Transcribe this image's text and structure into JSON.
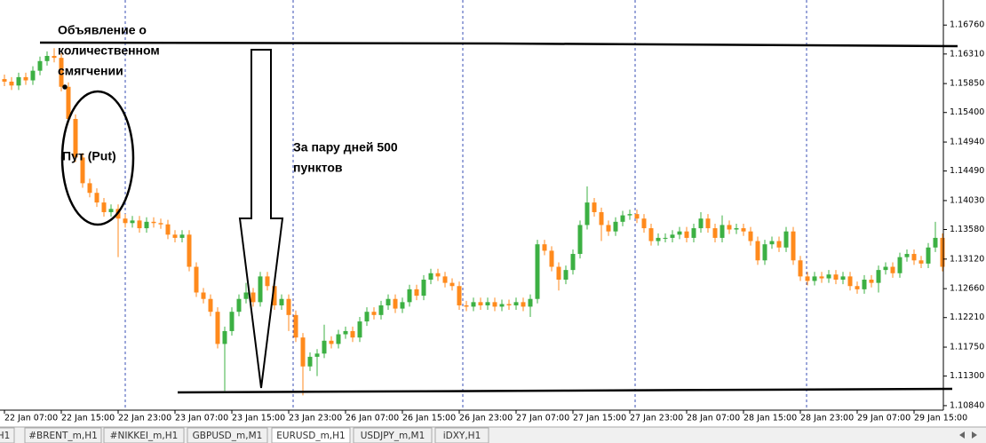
{
  "chart_data": {
    "type": "candlestick",
    "categories": [
      "22 Jan 07:00",
      null,
      null,
      null,
      null,
      null,
      null,
      null,
      "22 Jan 15:00",
      null,
      null,
      null,
      null,
      null,
      null,
      null,
      "22 Jan 23:00",
      null,
      null,
      null,
      null,
      null,
      null,
      null,
      "23 Jan 07:00",
      null,
      null,
      null,
      null,
      null,
      null,
      null,
      "23 Jan 15:00",
      null,
      null,
      null,
      null,
      null,
      null,
      null,
      "23 Jan 23:00",
      null,
      null,
      null,
      null,
      null,
      null,
      null,
      "26 Jan 07:00",
      null,
      null,
      null,
      null,
      null,
      null,
      null,
      "26 Jan 15:00",
      null,
      null,
      null,
      null,
      null,
      null,
      null,
      "26 Jan 23:00",
      null,
      null,
      null,
      null,
      null,
      null,
      null,
      "27 Jan 07:00",
      null,
      null,
      null,
      null,
      null,
      null,
      null,
      "27 Jan 15:00",
      null,
      null,
      null,
      null,
      null,
      null,
      null,
      "27 Jan 23:00",
      null,
      null,
      null,
      null,
      null,
      null,
      null,
      "28 Jan 07:00",
      null,
      null,
      null,
      null,
      null,
      null,
      null,
      "28 Jan 15:00",
      null,
      null,
      null,
      null,
      null,
      null,
      null,
      "28 Jan 23:00",
      null,
      null,
      null,
      null,
      null,
      null,
      null,
      "29 Jan 07:00",
      null,
      null,
      null,
      null,
      null,
      null,
      null,
      "29 Jan 15:00",
      null,
      null,
      null,
      null
    ],
    "open": [
      1.1592,
      1.1588,
      1.1582,
      1.1595,
      1.159,
      1.1605,
      1.162,
      1.1628,
      1.1625,
      1.158,
      1.153,
      1.147,
      1.143,
      1.1415,
      1.14,
      1.1385,
      1.139,
      1.1375,
      1.1368,
      1.1372,
      1.136,
      1.137,
      1.1368,
      1.1366,
      1.135,
      1.1345,
      1.135,
      1.13,
      1.126,
      1.125,
      1.123,
      1.118,
      1.12,
      1.123,
      1.125,
      1.126,
      1.1245,
      1.1285,
      1.127,
      1.124,
      1.125,
      1.1225,
      1.119,
      1.1145,
      1.116,
      1.1165,
      1.1185,
      1.118,
      1.1195,
      1.12,
      1.119,
      1.1215,
      1.123,
      1.1225,
      1.124,
      1.125,
      1.1235,
      1.1245,
      1.1265,
      1.1255,
      1.128,
      1.129,
      1.1285,
      1.1275,
      1.127,
      1.124,
      1.1238,
      1.1245,
      1.124,
      1.1245,
      1.1238,
      1.1242,
      1.124,
      1.1245,
      1.1238,
      1.125,
      1.1335,
      1.1325,
      1.13,
      1.128,
      1.1295,
      1.132,
      1.1365,
      1.14,
      1.1385,
      1.1365,
      1.1355,
      1.137,
      1.138,
      1.1382,
      1.1375,
      1.136,
      1.134,
      1.1345,
      1.1345,
      1.135,
      1.1355,
      1.1345,
      1.136,
      1.1375,
      1.136,
      1.1345,
      1.1365,
      1.1358,
      1.136,
      1.1355,
      1.134,
      1.131,
      1.1335,
      1.134,
      1.133,
      1.1355,
      1.131,
      1.1285,
      1.1278,
      1.1285,
      1.1282,
      1.1288,
      1.128,
      1.1285,
      1.127,
      1.1265,
      1.128,
      1.1275,
      1.1295,
      1.13,
      1.129,
      1.1315,
      1.132,
      1.131,
      1.1305,
      1.133,
      1.1345
    ],
    "high": [
      1.1599,
      1.1595,
      1.1602,
      1.1602,
      1.1612,
      1.1627,
      1.1635,
      1.164,
      1.1632,
      1.1587,
      1.1537,
      1.1477,
      1.1437,
      1.1422,
      1.1407,
      1.1397,
      1.1397,
      1.1382,
      1.1379,
      1.1379,
      1.1377,
      1.1377,
      1.1375,
      1.1373,
      1.1357,
      1.1357,
      1.1357,
      1.1307,
      1.1267,
      1.1257,
      1.1237,
      1.1207,
      1.1237,
      1.1257,
      1.1275,
      1.1267,
      1.1292,
      1.1292,
      1.1277,
      1.1257,
      1.1257,
      1.1232,
      1.1197,
      1.1167,
      1.1172,
      1.121,
      1.1192,
      1.1202,
      1.1207,
      1.1207,
      1.1222,
      1.1237,
      1.1237,
      1.1247,
      1.1257,
      1.1257,
      1.1252,
      1.1272,
      1.1272,
      1.1287,
      1.1297,
      1.1297,
      1.1292,
      1.1282,
      1.1277,
      1.1247,
      1.1252,
      1.1252,
      1.1252,
      1.1252,
      1.1249,
      1.1249,
      1.1252,
      1.1252,
      1.1257,
      1.1342,
      1.1342,
      1.1332,
      1.1307,
      1.1302,
      1.1327,
      1.1372,
      1.1425,
      1.1407,
      1.1392,
      1.1372,
      1.1377,
      1.1387,
      1.1389,
      1.1389,
      1.1382,
      1.1367,
      1.1352,
      1.1352,
      1.1357,
      1.1362,
      1.1362,
      1.1367,
      1.1385,
      1.1382,
      1.1367,
      1.138,
      1.1372,
      1.1367,
      1.1367,
      1.1362,
      1.1347,
      1.1342,
      1.1347,
      1.1347,
      1.1362,
      1.1362,
      1.1317,
      1.1292,
      1.1292,
      1.1292,
      1.1295,
      1.1295,
      1.1292,
      1.1292,
      1.1277,
      1.1287,
      1.1287,
      1.1302,
      1.1307,
      1.1307,
      1.1322,
      1.1327,
      1.1327,
      1.1317,
      1.1337,
      1.137,
      1.1352
    ],
    "low": [
      1.1581,
      1.1575,
      1.1575,
      1.1583,
      1.1583,
      1.1598,
      1.1613,
      1.1618,
      1.1573,
      1.1523,
      1.1463,
      1.1423,
      1.1408,
      1.1393,
      1.1378,
      1.1378,
      1.1315,
      1.1361,
      1.1361,
      1.1353,
      1.1353,
      1.1361,
      1.1359,
      1.1343,
      1.1338,
      1.1338,
      1.1293,
      1.1253,
      1.1243,
      1.1223,
      1.1173,
      1.1107,
      1.1193,
      1.1223,
      1.1243,
      1.1238,
      1.1238,
      1.1263,
      1.1233,
      1.1233,
      1.12,
      1.1183,
      1.11,
      1.1138,
      1.113,
      1.1158,
      1.1173,
      1.1173,
      1.1188,
      1.1183,
      1.1183,
      1.1208,
      1.1218,
      1.1218,
      1.1233,
      1.1228,
      1.1228,
      1.1238,
      1.1248,
      1.1248,
      1.1273,
      1.1278,
      1.1268,
      1.1263,
      1.1233,
      1.1231,
      1.1231,
      1.1233,
      1.1233,
      1.1231,
      1.1231,
      1.1233,
      1.1233,
      1.1231,
      1.1222,
      1.1243,
      1.1318,
      1.1293,
      1.1263,
      1.1273,
      1.1288,
      1.1313,
      1.1358,
      1.1378,
      1.134,
      1.1348,
      1.1348,
      1.1363,
      1.1373,
      1.1368,
      1.1353,
      1.1333,
      1.1333,
      1.1338,
      1.1338,
      1.1343,
      1.1338,
      1.1338,
      1.1353,
      1.1353,
      1.1338,
      1.1338,
      1.1351,
      1.1351,
      1.1348,
      1.1333,
      1.1303,
      1.1303,
      1.1328,
      1.1323,
      1.1323,
      1.1303,
      1.1278,
      1.1271,
      1.1271,
      1.1275,
      1.1275,
      1.1273,
      1.1273,
      1.1263,
      1.1258,
      1.1258,
      1.1268,
      1.126,
      1.1288,
      1.1283,
      1.1283,
      1.1308,
      1.1303,
      1.1298,
      1.1298,
      1.1323,
      1.1293
    ],
    "close": [
      1.1588,
      1.1582,
      1.1595,
      1.159,
      1.1605,
      1.162,
      1.1628,
      1.1625,
      1.158,
      1.153,
      1.147,
      1.143,
      1.1415,
      1.14,
      1.1385,
      1.139,
      1.1375,
      1.1368,
      1.1372,
      1.136,
      1.137,
      1.1368,
      1.1366,
      1.135,
      1.1345,
      1.135,
      1.13,
      1.126,
      1.125,
      1.123,
      1.118,
      1.12,
      1.123,
      1.125,
      1.126,
      1.1245,
      1.1285,
      1.127,
      1.124,
      1.125,
      1.1225,
      1.119,
      1.1145,
      1.116,
      1.1165,
      1.1185,
      1.118,
      1.1195,
      1.12,
      1.119,
      1.1215,
      1.123,
      1.1225,
      1.124,
      1.125,
      1.1235,
      1.1245,
      1.1265,
      1.1255,
      1.128,
      1.129,
      1.1285,
      1.1275,
      1.127,
      1.124,
      1.1238,
      1.1245,
      1.124,
      1.1245,
      1.1238,
      1.1242,
      1.124,
      1.1245,
      1.1238,
      1.125,
      1.1335,
      1.1325,
      1.13,
      1.128,
      1.1295,
      1.132,
      1.1365,
      1.14,
      1.1385,
      1.1365,
      1.1355,
      1.137,
      1.138,
      1.1382,
      1.1375,
      1.136,
      1.134,
      1.1345,
      1.1345,
      1.135,
      1.1355,
      1.1345,
      1.136,
      1.1375,
      1.136,
      1.1345,
      1.1365,
      1.1358,
      1.136,
      1.1355,
      1.134,
      1.131,
      1.1335,
      1.134,
      1.133,
      1.1355,
      1.131,
      1.1285,
      1.1278,
      1.1285,
      1.1282,
      1.1288,
      1.128,
      1.1285,
      1.127,
      1.1265,
      1.128,
      1.1275,
      1.1295,
      1.13,
      1.129,
      1.1315,
      1.132,
      1.131,
      1.1305,
      1.133,
      1.1345,
      1.13
    ],
    "up_color": "#3cb043",
    "down_color": "#ff8a1c",
    "ylim": [
      1.1077,
      1.1715
    ],
    "yticks": [
      {
        "value": 1.1676,
        "label": "1.16760"
      },
      {
        "value": 1.1631,
        "label": "1.16310"
      },
      {
        "value": 1.1585,
        "label": "1.15850"
      },
      {
        "value": 1.154,
        "label": "1.15400"
      },
      {
        "value": 1.1494,
        "label": "1.14940"
      },
      {
        "value": 1.1449,
        "label": "1.14490"
      },
      {
        "value": 1.1403,
        "label": "1.14030"
      },
      {
        "value": 1.1358,
        "label": "1.13580"
      },
      {
        "value": 1.1312,
        "label": "1.13120"
      },
      {
        "value": 1.1266,
        "label": "1.12660"
      },
      {
        "value": 1.1221,
        "label": "1.12210"
      },
      {
        "value": 1.1175,
        "label": "1.11750"
      },
      {
        "value": 1.113,
        "label": "1.11300"
      },
      {
        "value": 1.1084,
        "label": "1.10840"
      }
    ],
    "annotations": [
      [
        "Объявление о",
        "количественном",
        "смягчении"
      ],
      [
        "Пут (Put)"
      ],
      [
        "За пару дней 500",
        "пунктов"
      ]
    ]
  },
  "tabs": [
    {
      "label": "H1"
    },
    {
      "label": "#BRENT_m,H1"
    },
    {
      "label": "#NIKKEI_m,H1"
    },
    {
      "label": "GBPUSD_m,M1"
    },
    {
      "label": "EURUSD_m,H1",
      "active": true
    },
    {
      "label": "USDJPY_m,M1"
    },
    {
      "label": "iDXY,H1"
    }
  ]
}
